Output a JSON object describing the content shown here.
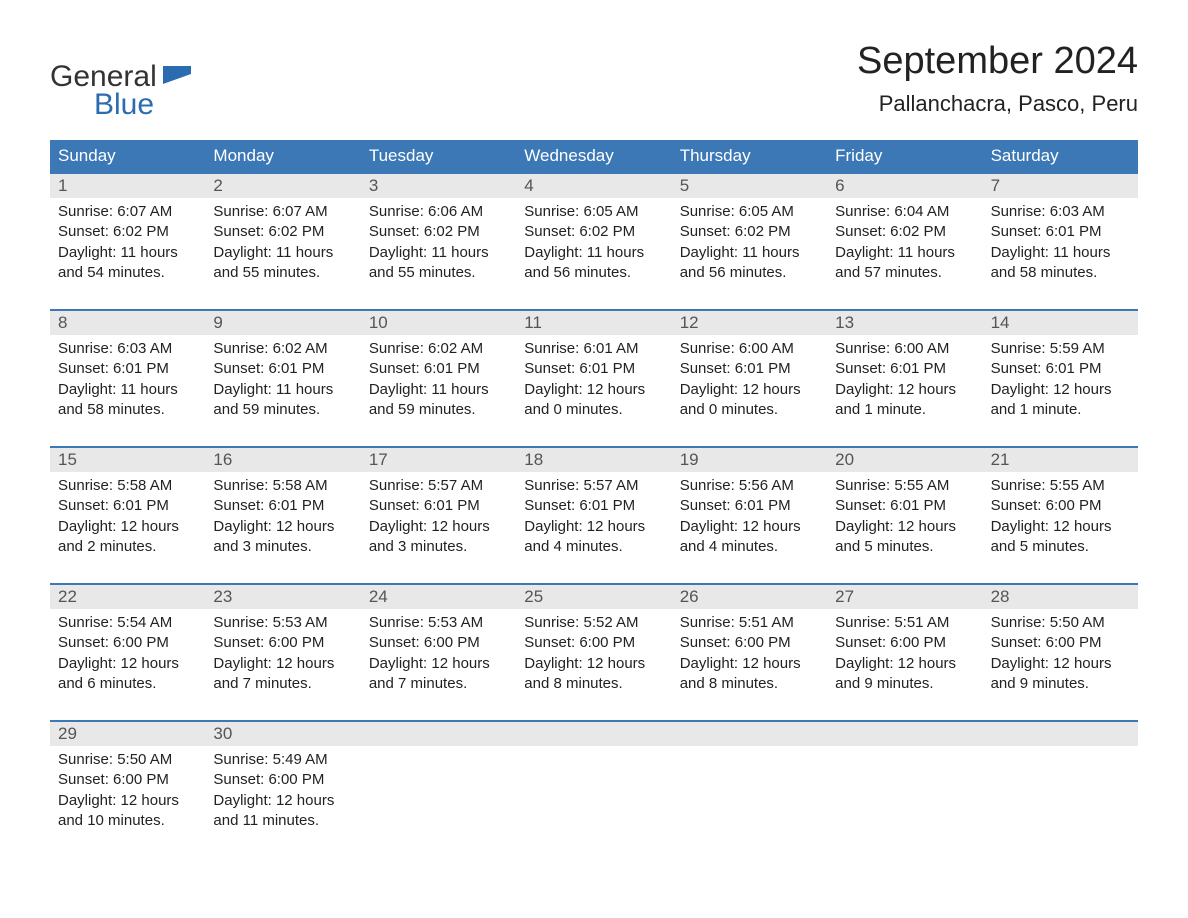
{
  "logo": {
    "word1": "General",
    "word2": "Blue",
    "icon_color": "#2b6cb0",
    "text_color_general": "#333333",
    "text_color_blue": "#2b6cb0"
  },
  "title": {
    "month_year": "September 2024",
    "location": "Pallanchacra, Pasco, Peru",
    "title_fontsize": 38,
    "location_fontsize": 22
  },
  "colors": {
    "header_bg": "#3b78b5",
    "header_text": "#ffffff",
    "daynum_bg": "#e8e8e8",
    "daynum_text": "#555555",
    "body_text": "#222222",
    "week_border": "#3b78b5",
    "page_bg": "#ffffff"
  },
  "weekdays": [
    "Sunday",
    "Monday",
    "Tuesday",
    "Wednesday",
    "Thursday",
    "Friday",
    "Saturday"
  ],
  "weeks": [
    [
      {
        "n": "1",
        "sunrise": "Sunrise: 6:07 AM",
        "sunset": "Sunset: 6:02 PM",
        "day1": "Daylight: 11 hours",
        "day2": "and 54 minutes."
      },
      {
        "n": "2",
        "sunrise": "Sunrise: 6:07 AM",
        "sunset": "Sunset: 6:02 PM",
        "day1": "Daylight: 11 hours",
        "day2": "and 55 minutes."
      },
      {
        "n": "3",
        "sunrise": "Sunrise: 6:06 AM",
        "sunset": "Sunset: 6:02 PM",
        "day1": "Daylight: 11 hours",
        "day2": "and 55 minutes."
      },
      {
        "n": "4",
        "sunrise": "Sunrise: 6:05 AM",
        "sunset": "Sunset: 6:02 PM",
        "day1": "Daylight: 11 hours",
        "day2": "and 56 minutes."
      },
      {
        "n": "5",
        "sunrise": "Sunrise: 6:05 AM",
        "sunset": "Sunset: 6:02 PM",
        "day1": "Daylight: 11 hours",
        "day2": "and 56 minutes."
      },
      {
        "n": "6",
        "sunrise": "Sunrise: 6:04 AM",
        "sunset": "Sunset: 6:02 PM",
        "day1": "Daylight: 11 hours",
        "day2": "and 57 minutes."
      },
      {
        "n": "7",
        "sunrise": "Sunrise: 6:03 AM",
        "sunset": "Sunset: 6:01 PM",
        "day1": "Daylight: 11 hours",
        "day2": "and 58 minutes."
      }
    ],
    [
      {
        "n": "8",
        "sunrise": "Sunrise: 6:03 AM",
        "sunset": "Sunset: 6:01 PM",
        "day1": "Daylight: 11 hours",
        "day2": "and 58 minutes."
      },
      {
        "n": "9",
        "sunrise": "Sunrise: 6:02 AM",
        "sunset": "Sunset: 6:01 PM",
        "day1": "Daylight: 11 hours",
        "day2": "and 59 minutes."
      },
      {
        "n": "10",
        "sunrise": "Sunrise: 6:02 AM",
        "sunset": "Sunset: 6:01 PM",
        "day1": "Daylight: 11 hours",
        "day2": "and 59 minutes."
      },
      {
        "n": "11",
        "sunrise": "Sunrise: 6:01 AM",
        "sunset": "Sunset: 6:01 PM",
        "day1": "Daylight: 12 hours",
        "day2": "and 0 minutes."
      },
      {
        "n": "12",
        "sunrise": "Sunrise: 6:00 AM",
        "sunset": "Sunset: 6:01 PM",
        "day1": "Daylight: 12 hours",
        "day2": "and 0 minutes."
      },
      {
        "n": "13",
        "sunrise": "Sunrise: 6:00 AM",
        "sunset": "Sunset: 6:01 PM",
        "day1": "Daylight: 12 hours",
        "day2": "and 1 minute."
      },
      {
        "n": "14",
        "sunrise": "Sunrise: 5:59 AM",
        "sunset": "Sunset: 6:01 PM",
        "day1": "Daylight: 12 hours",
        "day2": "and 1 minute."
      }
    ],
    [
      {
        "n": "15",
        "sunrise": "Sunrise: 5:58 AM",
        "sunset": "Sunset: 6:01 PM",
        "day1": "Daylight: 12 hours",
        "day2": "and 2 minutes."
      },
      {
        "n": "16",
        "sunrise": "Sunrise: 5:58 AM",
        "sunset": "Sunset: 6:01 PM",
        "day1": "Daylight: 12 hours",
        "day2": "and 3 minutes."
      },
      {
        "n": "17",
        "sunrise": "Sunrise: 5:57 AM",
        "sunset": "Sunset: 6:01 PM",
        "day1": "Daylight: 12 hours",
        "day2": "and 3 minutes."
      },
      {
        "n": "18",
        "sunrise": "Sunrise: 5:57 AM",
        "sunset": "Sunset: 6:01 PM",
        "day1": "Daylight: 12 hours",
        "day2": "and 4 minutes."
      },
      {
        "n": "19",
        "sunrise": "Sunrise: 5:56 AM",
        "sunset": "Sunset: 6:01 PM",
        "day1": "Daylight: 12 hours",
        "day2": "and 4 minutes."
      },
      {
        "n": "20",
        "sunrise": "Sunrise: 5:55 AM",
        "sunset": "Sunset: 6:01 PM",
        "day1": "Daylight: 12 hours",
        "day2": "and 5 minutes."
      },
      {
        "n": "21",
        "sunrise": "Sunrise: 5:55 AM",
        "sunset": "Sunset: 6:00 PM",
        "day1": "Daylight: 12 hours",
        "day2": "and 5 minutes."
      }
    ],
    [
      {
        "n": "22",
        "sunrise": "Sunrise: 5:54 AM",
        "sunset": "Sunset: 6:00 PM",
        "day1": "Daylight: 12 hours",
        "day2": "and 6 minutes."
      },
      {
        "n": "23",
        "sunrise": "Sunrise: 5:53 AM",
        "sunset": "Sunset: 6:00 PM",
        "day1": "Daylight: 12 hours",
        "day2": "and 7 minutes."
      },
      {
        "n": "24",
        "sunrise": "Sunrise: 5:53 AM",
        "sunset": "Sunset: 6:00 PM",
        "day1": "Daylight: 12 hours",
        "day2": "and 7 minutes."
      },
      {
        "n": "25",
        "sunrise": "Sunrise: 5:52 AM",
        "sunset": "Sunset: 6:00 PM",
        "day1": "Daylight: 12 hours",
        "day2": "and 8 minutes."
      },
      {
        "n": "26",
        "sunrise": "Sunrise: 5:51 AM",
        "sunset": "Sunset: 6:00 PM",
        "day1": "Daylight: 12 hours",
        "day2": "and 8 minutes."
      },
      {
        "n": "27",
        "sunrise": "Sunrise: 5:51 AM",
        "sunset": "Sunset: 6:00 PM",
        "day1": "Daylight: 12 hours",
        "day2": "and 9 minutes."
      },
      {
        "n": "28",
        "sunrise": "Sunrise: 5:50 AM",
        "sunset": "Sunset: 6:00 PM",
        "day1": "Daylight: 12 hours",
        "day2": "and 9 minutes."
      }
    ],
    [
      {
        "n": "29",
        "sunrise": "Sunrise: 5:50 AM",
        "sunset": "Sunset: 6:00 PM",
        "day1": "Daylight: 12 hours",
        "day2": "and 10 minutes."
      },
      {
        "n": "30",
        "sunrise": "Sunrise: 5:49 AM",
        "sunset": "Sunset: 6:00 PM",
        "day1": "Daylight: 12 hours",
        "day2": "and 11 minutes."
      },
      null,
      null,
      null,
      null,
      null
    ]
  ]
}
